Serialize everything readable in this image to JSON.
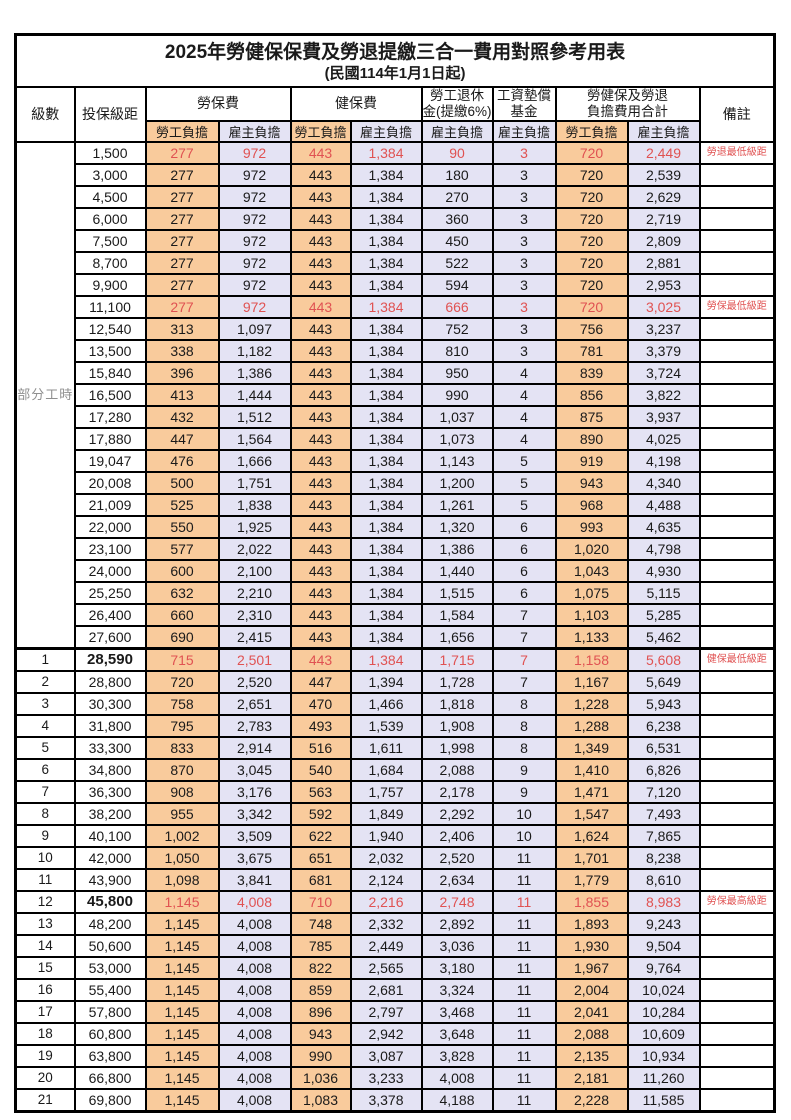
{
  "title": "2025年勞健保保費及勞退提繳三合一費用對照參考用表",
  "subtitle": "(民國114年1月1日起)",
  "colors": {
    "employee_bg": "#f9cb9c",
    "employer_bg": "#e4e3f4",
    "highlight_red": "#e05252",
    "grid": "#000000"
  },
  "header": {
    "level": "級數",
    "bracket": "投保級距",
    "labor_fee": "勞保費",
    "health_fee": "健保費",
    "pension_line1": "勞工退休",
    "pension_line2": "金(提繳6%)",
    "wage_fund_line1": "工資墊償",
    "wage_fund_line2": "基金",
    "total_line1": "勞健保及勞退",
    "total_line2": "負擔費用合計",
    "remark": "備註",
    "employee": "勞工負擔",
    "employer": "雇主負擔"
  },
  "part_time_label": "部分工時",
  "part_time_rowspan": 23,
  "value_names": [
    "labor-fee-employee",
    "labor-fee-employer",
    "health-fee-employee",
    "health-fee-employer",
    "pension-employer",
    "wage-fund-employer",
    "total-employee",
    "total-employer"
  ],
  "value_classes": [
    "emp",
    "er",
    "emp",
    "er",
    "er",
    "er",
    "emp",
    "er"
  ],
  "rows": [
    {
      "lv": "",
      "br": "1,500",
      "v": [
        "277",
        "972",
        "443",
        "1,384",
        "90",
        "3",
        "720",
        "2,449"
      ],
      "rm": "勞退最低級距",
      "hl": true
    },
    {
      "lv": "",
      "br": "3,000",
      "v": [
        "277",
        "972",
        "443",
        "1,384",
        "180",
        "3",
        "720",
        "2,539"
      ],
      "rm": ""
    },
    {
      "lv": "",
      "br": "4,500",
      "v": [
        "277",
        "972",
        "443",
        "1,384",
        "270",
        "3",
        "720",
        "2,629"
      ],
      "rm": ""
    },
    {
      "lv": "",
      "br": "6,000",
      "v": [
        "277",
        "972",
        "443",
        "1,384",
        "360",
        "3",
        "720",
        "2,719"
      ],
      "rm": ""
    },
    {
      "lv": "",
      "br": "7,500",
      "v": [
        "277",
        "972",
        "443",
        "1,384",
        "450",
        "3",
        "720",
        "2,809"
      ],
      "rm": ""
    },
    {
      "lv": "",
      "br": "8,700",
      "v": [
        "277",
        "972",
        "443",
        "1,384",
        "522",
        "3",
        "720",
        "2,881"
      ],
      "rm": ""
    },
    {
      "lv": "",
      "br": "9,900",
      "v": [
        "277",
        "972",
        "443",
        "1,384",
        "594",
        "3",
        "720",
        "2,953"
      ],
      "rm": ""
    },
    {
      "lv": "",
      "br": "11,100",
      "v": [
        "277",
        "972",
        "443",
        "1,384",
        "666",
        "3",
        "720",
        "3,025"
      ],
      "rm": "勞保最低級距",
      "hl": true
    },
    {
      "lv": "",
      "br": "12,540",
      "v": [
        "313",
        "1,097",
        "443",
        "1,384",
        "752",
        "3",
        "756",
        "3,237"
      ],
      "rm": ""
    },
    {
      "lv": "",
      "br": "13,500",
      "v": [
        "338",
        "1,182",
        "443",
        "1,384",
        "810",
        "3",
        "781",
        "3,379"
      ],
      "rm": ""
    },
    {
      "lv": "",
      "br": "15,840",
      "v": [
        "396",
        "1,386",
        "443",
        "1,384",
        "950",
        "4",
        "839",
        "3,724"
      ],
      "rm": ""
    },
    {
      "lv": "",
      "br": "16,500",
      "v": [
        "413",
        "1,444",
        "443",
        "1,384",
        "990",
        "4",
        "856",
        "3,822"
      ],
      "rm": ""
    },
    {
      "lv": "",
      "br": "17,280",
      "v": [
        "432",
        "1,512",
        "443",
        "1,384",
        "1,037",
        "4",
        "875",
        "3,937"
      ],
      "rm": ""
    },
    {
      "lv": "",
      "br": "17,880",
      "v": [
        "447",
        "1,564",
        "443",
        "1,384",
        "1,073",
        "4",
        "890",
        "4,025"
      ],
      "rm": ""
    },
    {
      "lv": "",
      "br": "19,047",
      "v": [
        "476",
        "1,666",
        "443",
        "1,384",
        "1,143",
        "5",
        "919",
        "4,198"
      ],
      "rm": ""
    },
    {
      "lv": "",
      "br": "20,008",
      "v": [
        "500",
        "1,751",
        "443",
        "1,384",
        "1,200",
        "5",
        "943",
        "4,340"
      ],
      "rm": ""
    },
    {
      "lv": "",
      "br": "21,009",
      "v": [
        "525",
        "1,838",
        "443",
        "1,384",
        "1,261",
        "5",
        "968",
        "4,488"
      ],
      "rm": ""
    },
    {
      "lv": "",
      "br": "22,000",
      "v": [
        "550",
        "1,925",
        "443",
        "1,384",
        "1,320",
        "6",
        "993",
        "4,635"
      ],
      "rm": ""
    },
    {
      "lv": "",
      "br": "23,100",
      "v": [
        "577",
        "2,022",
        "443",
        "1,384",
        "1,386",
        "6",
        "1,020",
        "4,798"
      ],
      "rm": ""
    },
    {
      "lv": "",
      "br": "24,000",
      "v": [
        "600",
        "2,100",
        "443",
        "1,384",
        "1,440",
        "6",
        "1,043",
        "4,930"
      ],
      "rm": ""
    },
    {
      "lv": "",
      "br": "25,250",
      "v": [
        "632",
        "2,210",
        "443",
        "1,384",
        "1,515",
        "6",
        "1,075",
        "5,115"
      ],
      "rm": ""
    },
    {
      "lv": "",
      "br": "26,400",
      "v": [
        "660",
        "2,310",
        "443",
        "1,384",
        "1,584",
        "7",
        "1,103",
        "5,285"
      ],
      "rm": ""
    },
    {
      "lv": "",
      "br": "27,600",
      "v": [
        "690",
        "2,415",
        "443",
        "1,384",
        "1,656",
        "7",
        "1,133",
        "5,462"
      ],
      "rm": ""
    },
    {
      "lv": "1",
      "br": "28,590",
      "v": [
        "715",
        "2,501",
        "443",
        "1,384",
        "1,715",
        "7",
        "1,158",
        "5,608"
      ],
      "rm": "健保最低級距",
      "hl": true,
      "bb": true,
      "section_start": true
    },
    {
      "lv": "2",
      "br": "28,800",
      "v": [
        "720",
        "2,520",
        "447",
        "1,394",
        "1,728",
        "7",
        "1,167",
        "5,649"
      ],
      "rm": ""
    },
    {
      "lv": "3",
      "br": "30,300",
      "v": [
        "758",
        "2,651",
        "470",
        "1,466",
        "1,818",
        "8",
        "1,228",
        "5,943"
      ],
      "rm": ""
    },
    {
      "lv": "4",
      "br": "31,800",
      "v": [
        "795",
        "2,783",
        "493",
        "1,539",
        "1,908",
        "8",
        "1,288",
        "6,238"
      ],
      "rm": ""
    },
    {
      "lv": "5",
      "br": "33,300",
      "v": [
        "833",
        "2,914",
        "516",
        "1,611",
        "1,998",
        "8",
        "1,349",
        "6,531"
      ],
      "rm": ""
    },
    {
      "lv": "6",
      "br": "34,800",
      "v": [
        "870",
        "3,045",
        "540",
        "1,684",
        "2,088",
        "9",
        "1,410",
        "6,826"
      ],
      "rm": ""
    },
    {
      "lv": "7",
      "br": "36,300",
      "v": [
        "908",
        "3,176",
        "563",
        "1,757",
        "2,178",
        "9",
        "1,471",
        "7,120"
      ],
      "rm": ""
    },
    {
      "lv": "8",
      "br": "38,200",
      "v": [
        "955",
        "3,342",
        "592",
        "1,849",
        "2,292",
        "10",
        "1,547",
        "7,493"
      ],
      "rm": ""
    },
    {
      "lv": "9",
      "br": "40,100",
      "v": [
        "1,002",
        "3,509",
        "622",
        "1,940",
        "2,406",
        "10",
        "1,624",
        "7,865"
      ],
      "rm": ""
    },
    {
      "lv": "10",
      "br": "42,000",
      "v": [
        "1,050",
        "3,675",
        "651",
        "2,032",
        "2,520",
        "11",
        "1,701",
        "8,238"
      ],
      "rm": ""
    },
    {
      "lv": "11",
      "br": "43,900",
      "v": [
        "1,098",
        "3,841",
        "681",
        "2,124",
        "2,634",
        "11",
        "1,779",
        "8,610"
      ],
      "rm": ""
    },
    {
      "lv": "12",
      "br": "45,800",
      "v": [
        "1,145",
        "4,008",
        "710",
        "2,216",
        "2,748",
        "11",
        "1,855",
        "8,983"
      ],
      "rm": "勞保最高級距",
      "hl": true,
      "bb": true
    },
    {
      "lv": "13",
      "br": "48,200",
      "v": [
        "1,145",
        "4,008",
        "748",
        "2,332",
        "2,892",
        "11",
        "1,893",
        "9,243"
      ],
      "rm": ""
    },
    {
      "lv": "14",
      "br": "50,600",
      "v": [
        "1,145",
        "4,008",
        "785",
        "2,449",
        "3,036",
        "11",
        "1,930",
        "9,504"
      ],
      "rm": ""
    },
    {
      "lv": "15",
      "br": "53,000",
      "v": [
        "1,145",
        "4,008",
        "822",
        "2,565",
        "3,180",
        "11",
        "1,967",
        "9,764"
      ],
      "rm": ""
    },
    {
      "lv": "16",
      "br": "55,400",
      "v": [
        "1,145",
        "4,008",
        "859",
        "2,681",
        "3,324",
        "11",
        "2,004",
        "10,024"
      ],
      "rm": ""
    },
    {
      "lv": "17",
      "br": "57,800",
      "v": [
        "1,145",
        "4,008",
        "896",
        "2,797",
        "3,468",
        "11",
        "2,041",
        "10,284"
      ],
      "rm": ""
    },
    {
      "lv": "18",
      "br": "60,800",
      "v": [
        "1,145",
        "4,008",
        "943",
        "2,942",
        "3,648",
        "11",
        "2,088",
        "10,609"
      ],
      "rm": ""
    },
    {
      "lv": "19",
      "br": "63,800",
      "v": [
        "1,145",
        "4,008",
        "990",
        "3,087",
        "3,828",
        "11",
        "2,135",
        "10,934"
      ],
      "rm": ""
    },
    {
      "lv": "20",
      "br": "66,800",
      "v": [
        "1,145",
        "4,008",
        "1,036",
        "3,233",
        "4,008",
        "11",
        "2,181",
        "11,260"
      ],
      "rm": ""
    },
    {
      "lv": "21",
      "br": "69,800",
      "v": [
        "1,145",
        "4,008",
        "1,083",
        "3,378",
        "4,188",
        "11",
        "2,228",
        "11,585"
      ],
      "rm": ""
    }
  ]
}
